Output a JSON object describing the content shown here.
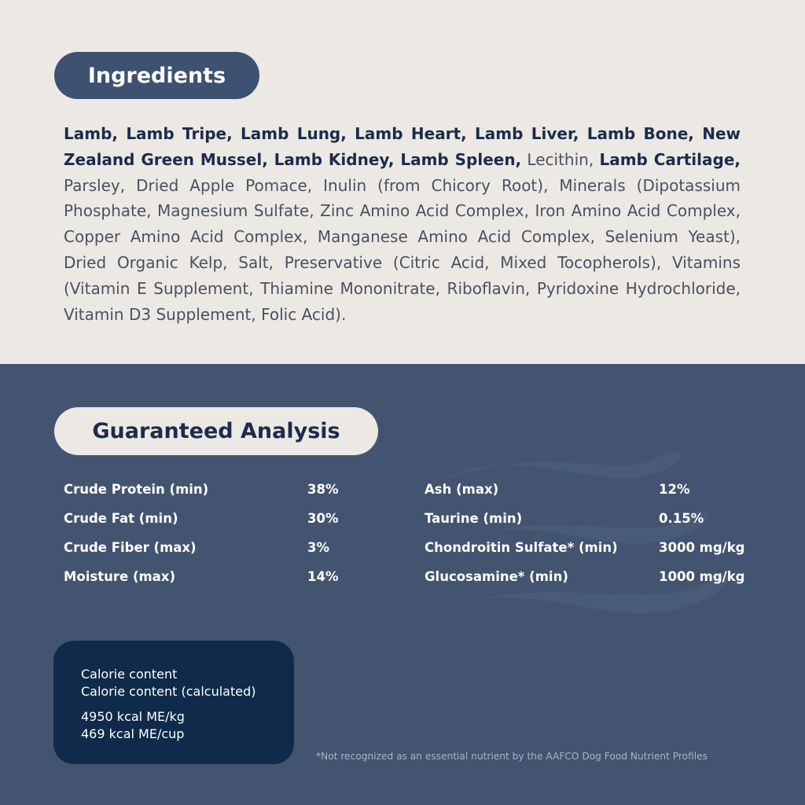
{
  "ingredients": {
    "title": "Ingredients",
    "segments": [
      {
        "text": "Lamb, Lamb Tripe, Lamb Lung, Lamb Heart, Lamb Liver, Lamb Bone, New Zealand Green Mussel, Lamb Kidney, Lamb Spleen,",
        "bold": true
      },
      {
        "text": "Lecithin,",
        "bold": false
      },
      {
        "text": "Lamb Cartilage,",
        "bold": true
      },
      {
        "text": "Parsley, Dried Apple Pomace, Inulin (from Chicory Root), Minerals (Dipotassium Phosphate, Magnesium Sulfate, Zinc Amino Acid Complex, Iron Amino Acid Complex, Copper Amino Acid Complex, Manganese Amino Acid Complex, Selenium Yeast), Dried Organic Kelp, Salt, Preservative (Citric Acid, Mixed Tocopherols), Vitamins (Vitamin E Supplement, Thiamine Mononitrate, Riboflavin, Pyridoxine Hydrochloride, Vitamin D3 Supplement, Folic Acid).",
        "bold": false
      }
    ]
  },
  "analysis": {
    "title": "Guaranteed Analysis",
    "columns": [
      [
        [
          "Crude Protein (min)",
          "38%"
        ],
        [
          "Crude Fat (min)",
          "30%"
        ],
        [
          "Crude Fiber (max)",
          "3%"
        ],
        [
          "Moisture (max)",
          "14%"
        ]
      ],
      [
        [
          "Ash (max)",
          "12%"
        ],
        [
          "Taurine (min)",
          "0.15%"
        ],
        [
          "Chondroitin Sulfate* (min)",
          "3000 mg/kg"
        ],
        [
          "Glucosamine* (min)",
          "1000 mg/kg"
        ]
      ]
    ]
  },
  "calories": {
    "labels": [
      "Calorie content",
      "Calorie content (calculated)"
    ],
    "values": [
      "4950 kcal ME/kg",
      "469 kcal ME/cup"
    ]
  },
  "footnote": "*Not recognized as an essential nutrient by the AAFCO Dog Food Nutrient Profiles"
}
